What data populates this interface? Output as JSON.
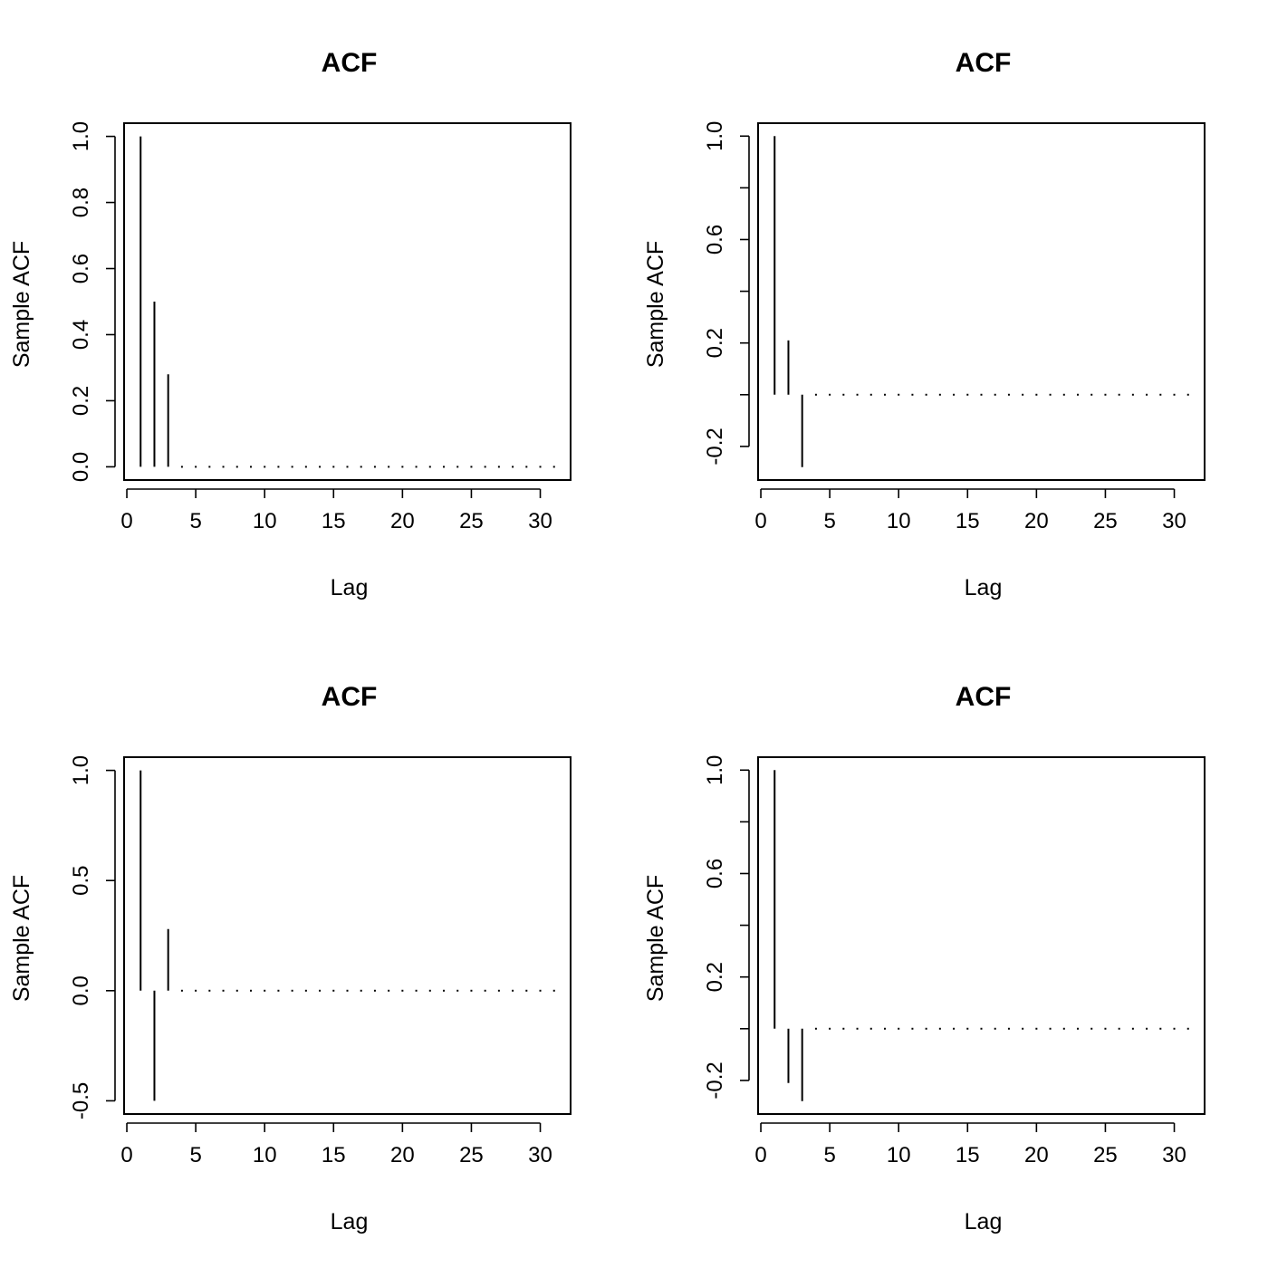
{
  "chart_data": [
    {
      "type": "bar",
      "title": "ACF",
      "xlabel": "Lag",
      "ylabel": "Sample ACF",
      "x": [
        1,
        2,
        3,
        4,
        5,
        6,
        7,
        8,
        9,
        10,
        11,
        12,
        13,
        14,
        15,
        16,
        17,
        18,
        19,
        20,
        21,
        22,
        23,
        24,
        25,
        26,
        27,
        28,
        29,
        30,
        31
      ],
      "values": [
        1.0,
        0.5,
        0.28,
        0,
        0,
        0,
        0,
        0,
        0,
        0,
        0,
        0,
        0,
        0,
        0,
        0,
        0,
        0,
        0,
        0,
        0,
        0,
        0,
        0,
        0,
        0,
        0,
        0,
        0,
        0,
        0
      ],
      "xlim": [
        -0.2,
        32.2
      ],
      "ylim": [
        -0.04,
        1.04
      ],
      "xticks": [
        0,
        5,
        10,
        15,
        20,
        25,
        30
      ],
      "xtick_labels": [
        "0",
        "5",
        "10",
        "15",
        "20",
        "25",
        "30"
      ],
      "yticks": [
        0.0,
        0.2,
        0.4,
        0.6,
        0.8,
        1.0
      ],
      "ytick_labels": [
        "0.0",
        "0.2",
        "0.4",
        "0.6",
        "0.8",
        "1.0"
      ],
      "grid": false
    },
    {
      "type": "bar",
      "title": "ACF",
      "xlabel": "Lag",
      "ylabel": "Sample ACF",
      "x": [
        1,
        2,
        3,
        4,
        5,
        6,
        7,
        8,
        9,
        10,
        11,
        12,
        13,
        14,
        15,
        16,
        17,
        18,
        19,
        20,
        21,
        22,
        23,
        24,
        25,
        26,
        27,
        28,
        29,
        30,
        31
      ],
      "values": [
        1.0,
        0.21,
        -0.28,
        0,
        0,
        0,
        0,
        0,
        0,
        0,
        0,
        0,
        0,
        0,
        0,
        0,
        0,
        0,
        0,
        0,
        0,
        0,
        0,
        0,
        0,
        0,
        0,
        0,
        0,
        0,
        0
      ],
      "xlim": [
        -0.2,
        32.2
      ],
      "ylim": [
        -0.33,
        1.05
      ],
      "xticks": [
        0,
        5,
        10,
        15,
        20,
        25,
        30
      ],
      "xtick_labels": [
        "0",
        "5",
        "10",
        "15",
        "20",
        "25",
        "30"
      ],
      "yticks": [
        -0.2,
        0.0,
        0.2,
        0.4,
        0.6,
        0.8,
        1.0
      ],
      "ytick_labels": [
        "-0.2",
        "",
        "0.2",
        "",
        "0.6",
        "",
        "1.0"
      ],
      "grid": false
    },
    {
      "type": "bar",
      "title": "ACF",
      "xlabel": "Lag",
      "ylabel": "Sample ACF",
      "x": [
        1,
        2,
        3,
        4,
        5,
        6,
        7,
        8,
        9,
        10,
        11,
        12,
        13,
        14,
        15,
        16,
        17,
        18,
        19,
        20,
        21,
        22,
        23,
        24,
        25,
        26,
        27,
        28,
        29,
        30,
        31
      ],
      "values": [
        1.0,
        -0.5,
        0.28,
        0,
        0,
        0,
        0,
        0,
        0,
        0,
        0,
        0,
        0,
        0,
        0,
        0,
        0,
        0,
        0,
        0,
        0,
        0,
        0,
        0,
        0,
        0,
        0,
        0,
        0,
        0,
        0
      ],
      "xlim": [
        -0.2,
        32.2
      ],
      "ylim": [
        -0.56,
        1.06
      ],
      "xticks": [
        0,
        5,
        10,
        15,
        20,
        25,
        30
      ],
      "xtick_labels": [
        "0",
        "5",
        "10",
        "15",
        "20",
        "25",
        "30"
      ],
      "yticks": [
        -0.5,
        0.0,
        0.5,
        1.0
      ],
      "ytick_labels": [
        "-0.5",
        "0.0",
        "0.5",
        "1.0"
      ],
      "grid": false
    },
    {
      "type": "bar",
      "title": "ACF",
      "xlabel": "Lag",
      "ylabel": "Sample ACF",
      "x": [
        1,
        2,
        3,
        4,
        5,
        6,
        7,
        8,
        9,
        10,
        11,
        12,
        13,
        14,
        15,
        16,
        17,
        18,
        19,
        20,
        21,
        22,
        23,
        24,
        25,
        26,
        27,
        28,
        29,
        30,
        31
      ],
      "values": [
        1.0,
        -0.21,
        -0.28,
        0,
        0,
        0,
        0,
        0,
        0,
        0,
        0,
        0,
        0,
        0,
        0,
        0,
        0,
        0,
        0,
        0,
        0,
        0,
        0,
        0,
        0,
        0,
        0,
        0,
        0,
        0,
        0
      ],
      "xlim": [
        -0.2,
        32.2
      ],
      "ylim": [
        -0.33,
        1.05
      ],
      "xticks": [
        0,
        5,
        10,
        15,
        20,
        25,
        30
      ],
      "xtick_labels": [
        "0",
        "5",
        "10",
        "15",
        "20",
        "25",
        "30"
      ],
      "yticks": [
        -0.2,
        0.0,
        0.2,
        0.4,
        0.6,
        0.8,
        1.0
      ],
      "ytick_labels": [
        "-0.2",
        "",
        "0.2",
        "",
        "0.6",
        "",
        "1.0"
      ],
      "grid": false
    }
  ]
}
